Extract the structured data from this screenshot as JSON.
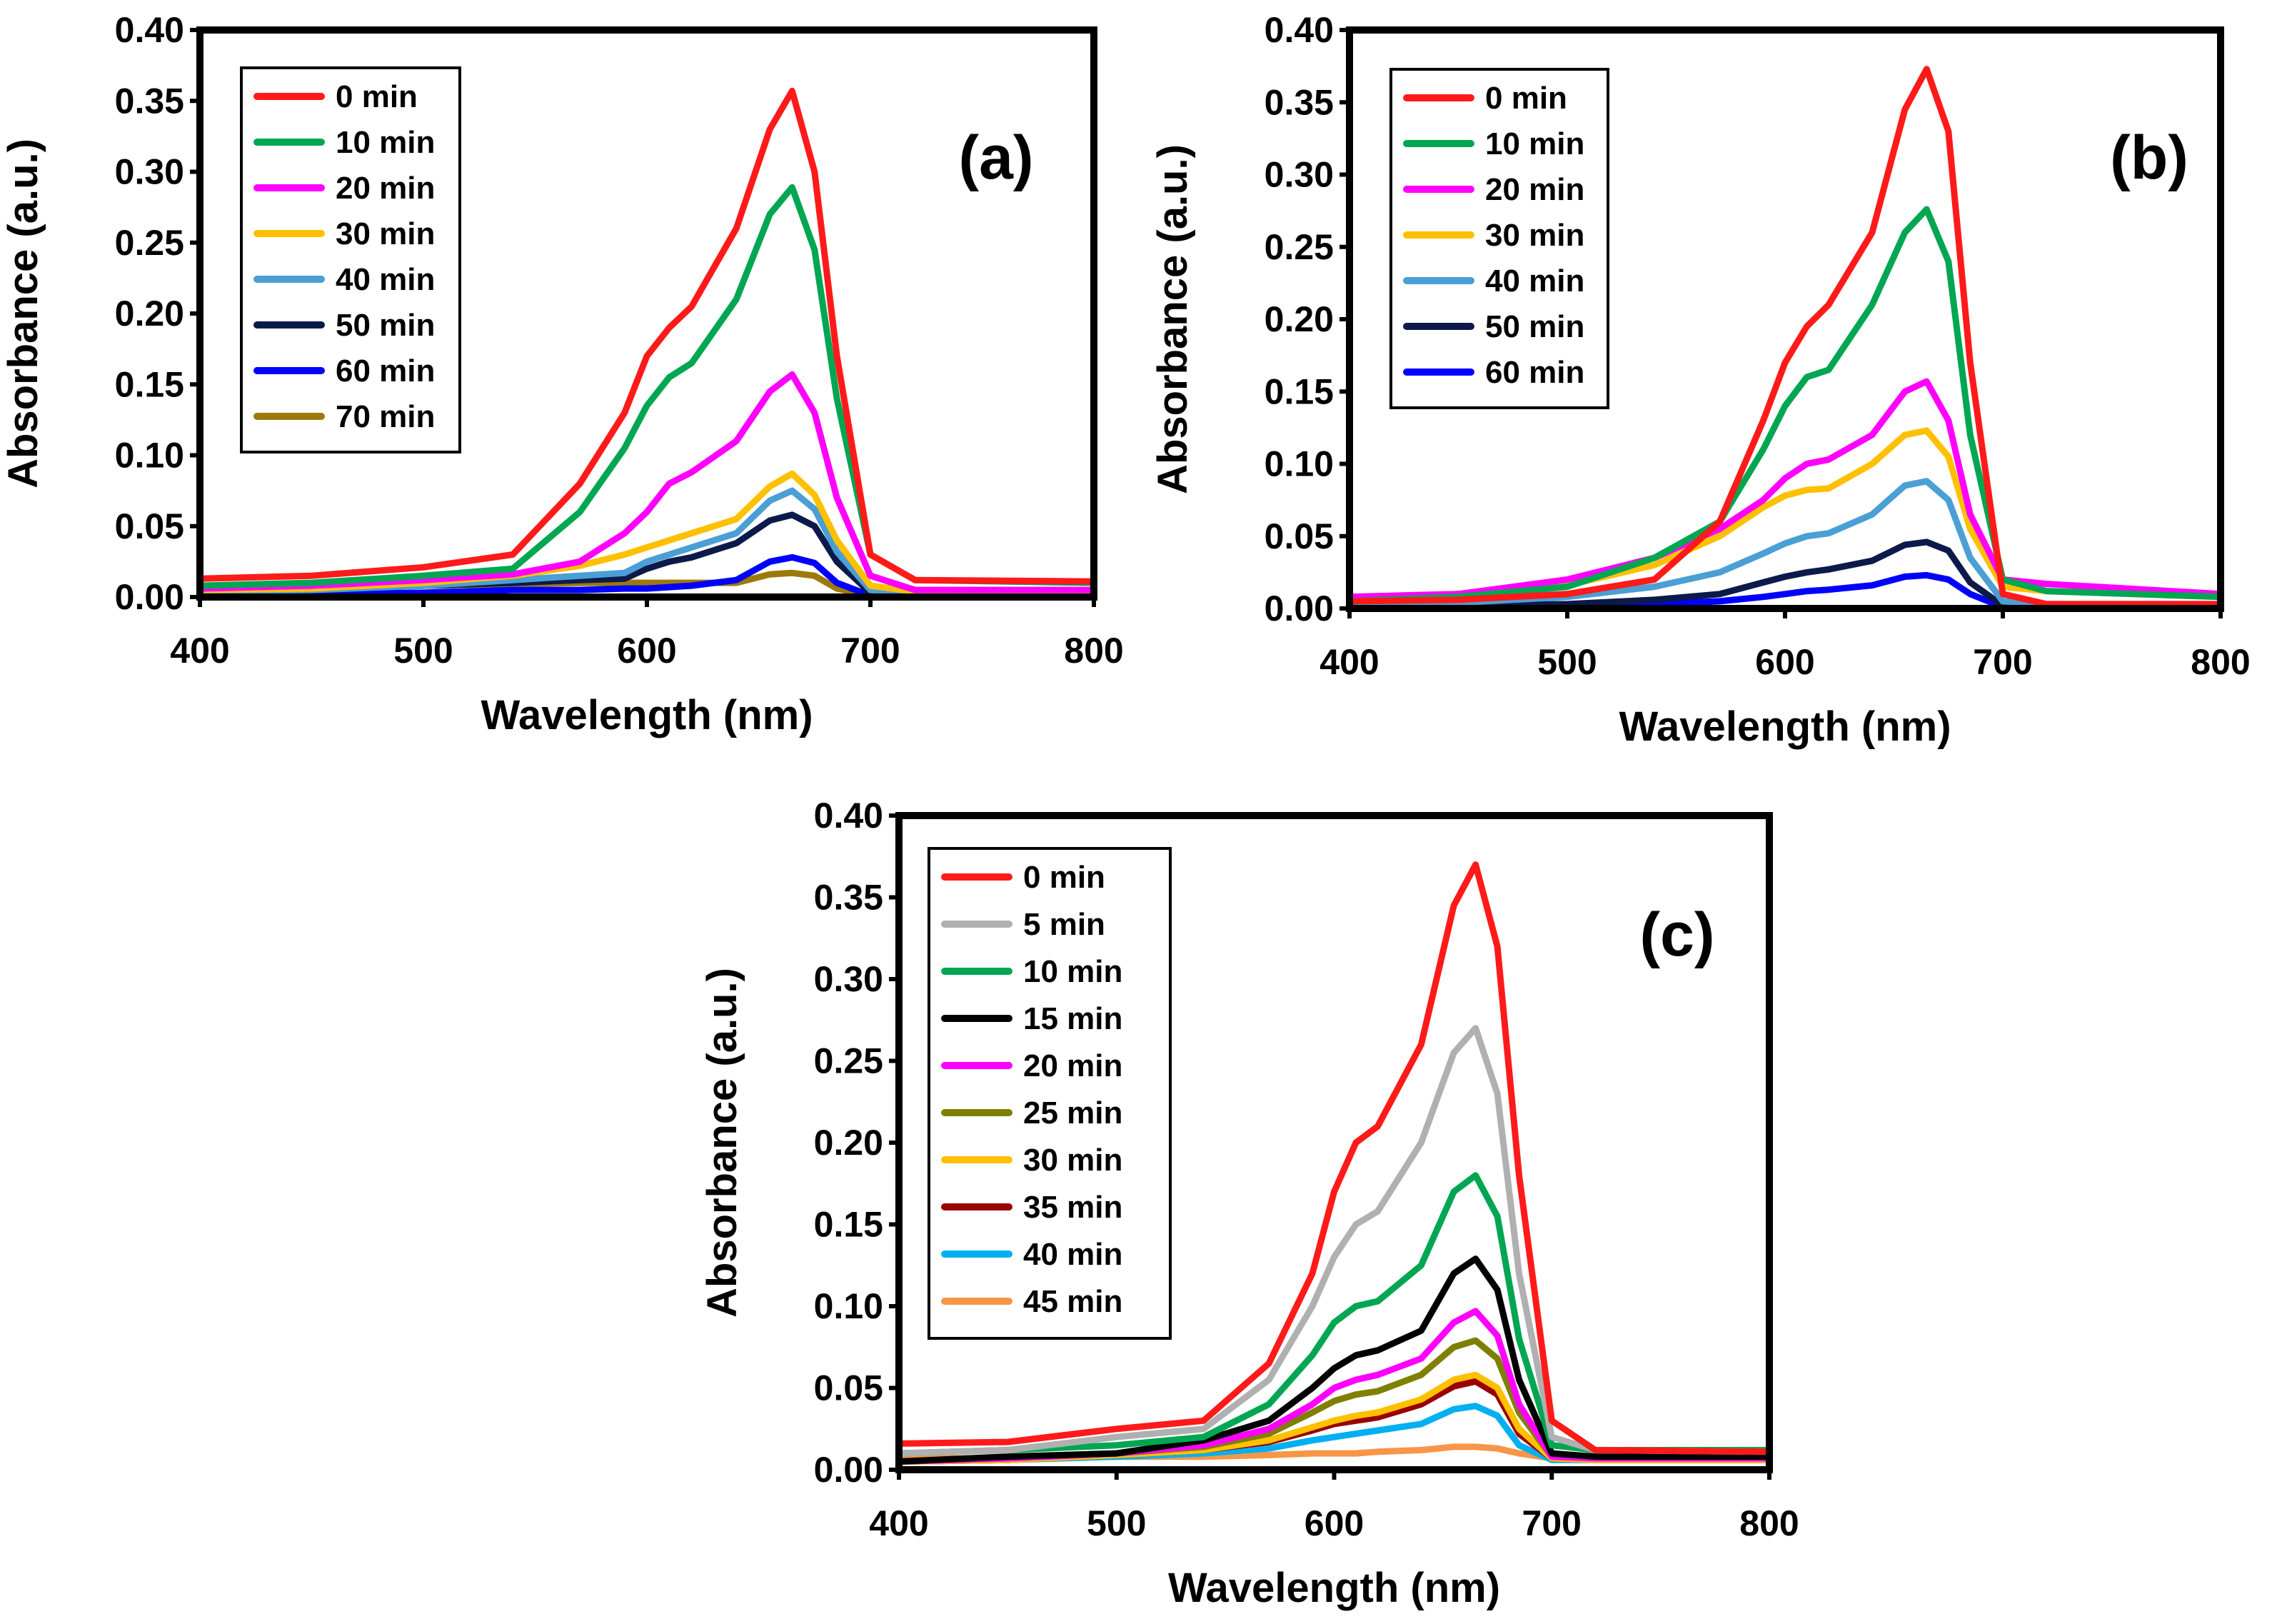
{
  "chart_data": [
    {
      "type": "line",
      "panel_label": "(a)",
      "xlabel": "Wavelength (nm)",
      "ylabel": "Absorbance (a.u.)",
      "xlim": [
        400,
        800
      ],
      "ylim": [
        0,
        0.4
      ],
      "xticks": [
        "400",
        "500",
        "600",
        "700",
        "800"
      ],
      "yticks": [
        "0.00",
        "0.05",
        "0.10",
        "0.15",
        "0.20",
        "0.25",
        "0.30",
        "0.35",
        "0.40"
      ],
      "legend_position": "top-left",
      "x": [
        400,
        450,
        500,
        540,
        570,
        590,
        600,
        610,
        620,
        640,
        655,
        665,
        675,
        685,
        700,
        720,
        800
      ],
      "series": [
        {
          "name": "0 min",
          "color": "#ff1a1a",
          "values": [
            0.013,
            0.015,
            0.021,
            0.03,
            0.08,
            0.13,
            0.17,
            0.19,
            0.205,
            0.26,
            0.33,
            0.357,
            0.3,
            0.17,
            0.03,
            0.012,
            0.011
          ]
        },
        {
          "name": "10 min",
          "color": "#00a651",
          "values": [
            0.008,
            0.01,
            0.015,
            0.02,
            0.06,
            0.105,
            0.135,
            0.155,
            0.165,
            0.21,
            0.27,
            0.289,
            0.245,
            0.14,
            0.03,
            0.012,
            0.01
          ]
        },
        {
          "name": "20 min",
          "color": "#ff00ff",
          "values": [
            0.006,
            0.008,
            0.012,
            0.016,
            0.025,
            0.045,
            0.06,
            0.08,
            0.088,
            0.11,
            0.145,
            0.157,
            0.13,
            0.07,
            0.015,
            0.005,
            0.005
          ]
        },
        {
          "name": "30 min",
          "color": "#ffc000",
          "values": [
            0.005,
            0.006,
            0.01,
            0.015,
            0.022,
            0.03,
            0.035,
            0.04,
            0.045,
            0.055,
            0.078,
            0.087,
            0.072,
            0.04,
            0.008,
            0.004,
            0.004
          ]
        },
        {
          "name": "40 min",
          "color": "#4a9fd5",
          "values": [
            0.004,
            0.005,
            0.008,
            0.012,
            0.015,
            0.017,
            0.025,
            0.03,
            0.035,
            0.045,
            0.068,
            0.075,
            0.062,
            0.032,
            0.005,
            0.003,
            0.003
          ]
        },
        {
          "name": "50 min",
          "color": "#0c1a4a",
          "values": [
            0.003,
            0.005,
            0.008,
            0.01,
            0.012,
            0.013,
            0.02,
            0.025,
            0.028,
            0.038,
            0.054,
            0.058,
            0.05,
            0.025,
            0.003,
            0.002,
            0.002
          ]
        },
        {
          "name": "60 min",
          "color": "#0000ff",
          "values": [
            0.001,
            0.002,
            0.003,
            0.005,
            0.005,
            0.006,
            0.006,
            0.007,
            0.008,
            0.012,
            0.025,
            0.028,
            0.024,
            0.01,
            0.001,
            0,
            0
          ]
        },
        {
          "name": "70 min",
          "color": "#9c7a0a",
          "values": [
            0.005,
            0.006,
            0.008,
            0.009,
            0.01,
            0.01,
            0.01,
            0.01,
            0.01,
            0.01,
            0.016,
            0.017,
            0.015,
            0.006,
            0.001,
            0.001,
            0.001
          ]
        }
      ]
    },
    {
      "type": "line",
      "panel_label": "(b)",
      "xlabel": "Wavelength (nm)",
      "ylabel": "Absorbance (a.u.)",
      "xlim": [
        400,
        800
      ],
      "ylim": [
        0,
        0.4
      ],
      "xticks": [
        "400",
        "500",
        "600",
        "700",
        "800"
      ],
      "yticks": [
        "0.00",
        "0.05",
        "0.10",
        "0.15",
        "0.20",
        "0.25",
        "0.30",
        "0.35",
        "0.40"
      ],
      "legend_position": "top-left",
      "x": [
        400,
        450,
        500,
        540,
        570,
        590,
        600,
        610,
        620,
        640,
        655,
        665,
        675,
        685,
        700,
        720,
        800
      ],
      "series": [
        {
          "name": "0 min",
          "color": "#ff1a1a",
          "values": [
            0.005,
            0.006,
            0.01,
            0.02,
            0.06,
            0.13,
            0.17,
            0.195,
            0.21,
            0.26,
            0.345,
            0.373,
            0.33,
            0.17,
            0.01,
            0.003,
            0.003
          ]
        },
        {
          "name": "10 min",
          "color": "#00a651",
          "values": [
            0.005,
            0.008,
            0.015,
            0.035,
            0.06,
            0.11,
            0.14,
            0.16,
            0.165,
            0.21,
            0.26,
            0.276,
            0.24,
            0.12,
            0.02,
            0.012,
            0.008
          ]
        },
        {
          "name": "20 min",
          "color": "#ff00ff",
          "values": [
            0.008,
            0.01,
            0.02,
            0.035,
            0.055,
            0.075,
            0.09,
            0.1,
            0.103,
            0.12,
            0.15,
            0.157,
            0.13,
            0.065,
            0.02,
            0.017,
            0.01
          ]
        },
        {
          "name": "30 min",
          "color": "#ffc000",
          "values": [
            0.008,
            0.01,
            0.016,
            0.03,
            0.05,
            0.07,
            0.078,
            0.082,
            0.083,
            0.1,
            0.12,
            0.123,
            0.105,
            0.055,
            0.015,
            0.012,
            0.008
          ]
        },
        {
          "name": "40 min",
          "color": "#4a9fd5",
          "values": [
            0.003,
            0.004,
            0.008,
            0.015,
            0.025,
            0.038,
            0.045,
            0.05,
            0.052,
            0.065,
            0.085,
            0.088,
            0.075,
            0.035,
            0.005,
            0.003,
            0.003
          ]
        },
        {
          "name": "50 min",
          "color": "#0c1a4a",
          "values": [
            0.002,
            0.002,
            0.003,
            0.006,
            0.01,
            0.018,
            0.022,
            0.025,
            0.027,
            0.033,
            0.044,
            0.046,
            0.04,
            0.018,
            0.002,
            0.001,
            0.001
          ]
        },
        {
          "name": "60 min",
          "color": "#0000ff",
          "values": [
            0.001,
            0.001,
            0.002,
            0.003,
            0.005,
            0.008,
            0.01,
            0.012,
            0.013,
            0.016,
            0.022,
            0.023,
            0.02,
            0.01,
            0.001,
            0.001,
            0.001
          ]
        }
      ]
    },
    {
      "type": "line",
      "panel_label": "(c)",
      "xlabel": "Wavelength (nm)",
      "ylabel": "Absorbance (a.u.)",
      "xlim": [
        400,
        800
      ],
      "ylim": [
        0,
        0.4
      ],
      "xticks": [
        "400",
        "500",
        "600",
        "700",
        "800"
      ],
      "yticks": [
        "0.00",
        "0.05",
        "0.10",
        "0.15",
        "0.20",
        "0.25",
        "0.30",
        "0.35",
        "0.40"
      ],
      "legend_position": "top-left",
      "x": [
        400,
        450,
        500,
        540,
        570,
        590,
        600,
        610,
        620,
        640,
        655,
        665,
        675,
        685,
        700,
        720,
        800
      ],
      "series": [
        {
          "name": "0 min",
          "color": "#ff1a1a",
          "values": [
            0.016,
            0.017,
            0.025,
            0.03,
            0.065,
            0.12,
            0.17,
            0.2,
            0.21,
            0.26,
            0.345,
            0.37,
            0.32,
            0.18,
            0.03,
            0.012,
            0.011
          ]
        },
        {
          "name": "5 min",
          "color": "#b0b0b0",
          "values": [
            0.01,
            0.012,
            0.02,
            0.025,
            0.055,
            0.1,
            0.13,
            0.15,
            0.158,
            0.2,
            0.255,
            0.27,
            0.23,
            0.12,
            0.02,
            0.012,
            0.011
          ]
        },
        {
          "name": "10 min",
          "color": "#00a651",
          "values": [
            0.01,
            0.012,
            0.015,
            0.02,
            0.04,
            0.07,
            0.09,
            0.1,
            0.103,
            0.125,
            0.17,
            0.18,
            0.155,
            0.08,
            0.015,
            0.012,
            0.012
          ]
        },
        {
          "name": "15 min",
          "color": "#000000",
          "values": [
            0.005,
            0.008,
            0.01,
            0.018,
            0.03,
            0.05,
            0.062,
            0.07,
            0.073,
            0.085,
            0.12,
            0.129,
            0.11,
            0.055,
            0.01,
            0.008,
            0.008
          ]
        },
        {
          "name": "20 min",
          "color": "#ff00ff",
          "values": [
            0.005,
            0.007,
            0.01,
            0.015,
            0.025,
            0.04,
            0.05,
            0.055,
            0.058,
            0.068,
            0.09,
            0.097,
            0.082,
            0.04,
            0.008,
            0.007,
            0.007
          ]
        },
        {
          "name": "25 min",
          "color": "#7f7f00",
          "values": [
            0.005,
            0.007,
            0.01,
            0.014,
            0.022,
            0.035,
            0.042,
            0.046,
            0.048,
            0.058,
            0.075,
            0.079,
            0.068,
            0.035,
            0.008,
            0.007,
            0.007
          ]
        },
        {
          "name": "30 min",
          "color": "#ffc000",
          "values": [
            0.005,
            0.006,
            0.009,
            0.012,
            0.018,
            0.026,
            0.03,
            0.033,
            0.035,
            0.043,
            0.055,
            0.058,
            0.05,
            0.025,
            0.007,
            0.006,
            0.006
          ]
        },
        {
          "name": "35 min",
          "color": "#990000",
          "values": [
            0.005,
            0.006,
            0.009,
            0.012,
            0.017,
            0.024,
            0.028,
            0.03,
            0.032,
            0.04,
            0.051,
            0.054,
            0.046,
            0.022,
            0.007,
            0.006,
            0.006
          ]
        },
        {
          "name": "40 min",
          "color": "#00b0f0",
          "values": [
            0.005,
            0.006,
            0.008,
            0.01,
            0.013,
            0.018,
            0.02,
            0.022,
            0.024,
            0.028,
            0.037,
            0.039,
            0.033,
            0.015,
            0.006,
            0.006,
            0.006
          ]
        },
        {
          "name": "45 min",
          "color": "#f79646",
          "values": [
            0.007,
            0.007,
            0.008,
            0.008,
            0.009,
            0.01,
            0.01,
            0.01,
            0.011,
            0.012,
            0.014,
            0.014,
            0.013,
            0.01,
            0.007,
            0.007,
            0.007
          ]
        }
      ]
    }
  ]
}
